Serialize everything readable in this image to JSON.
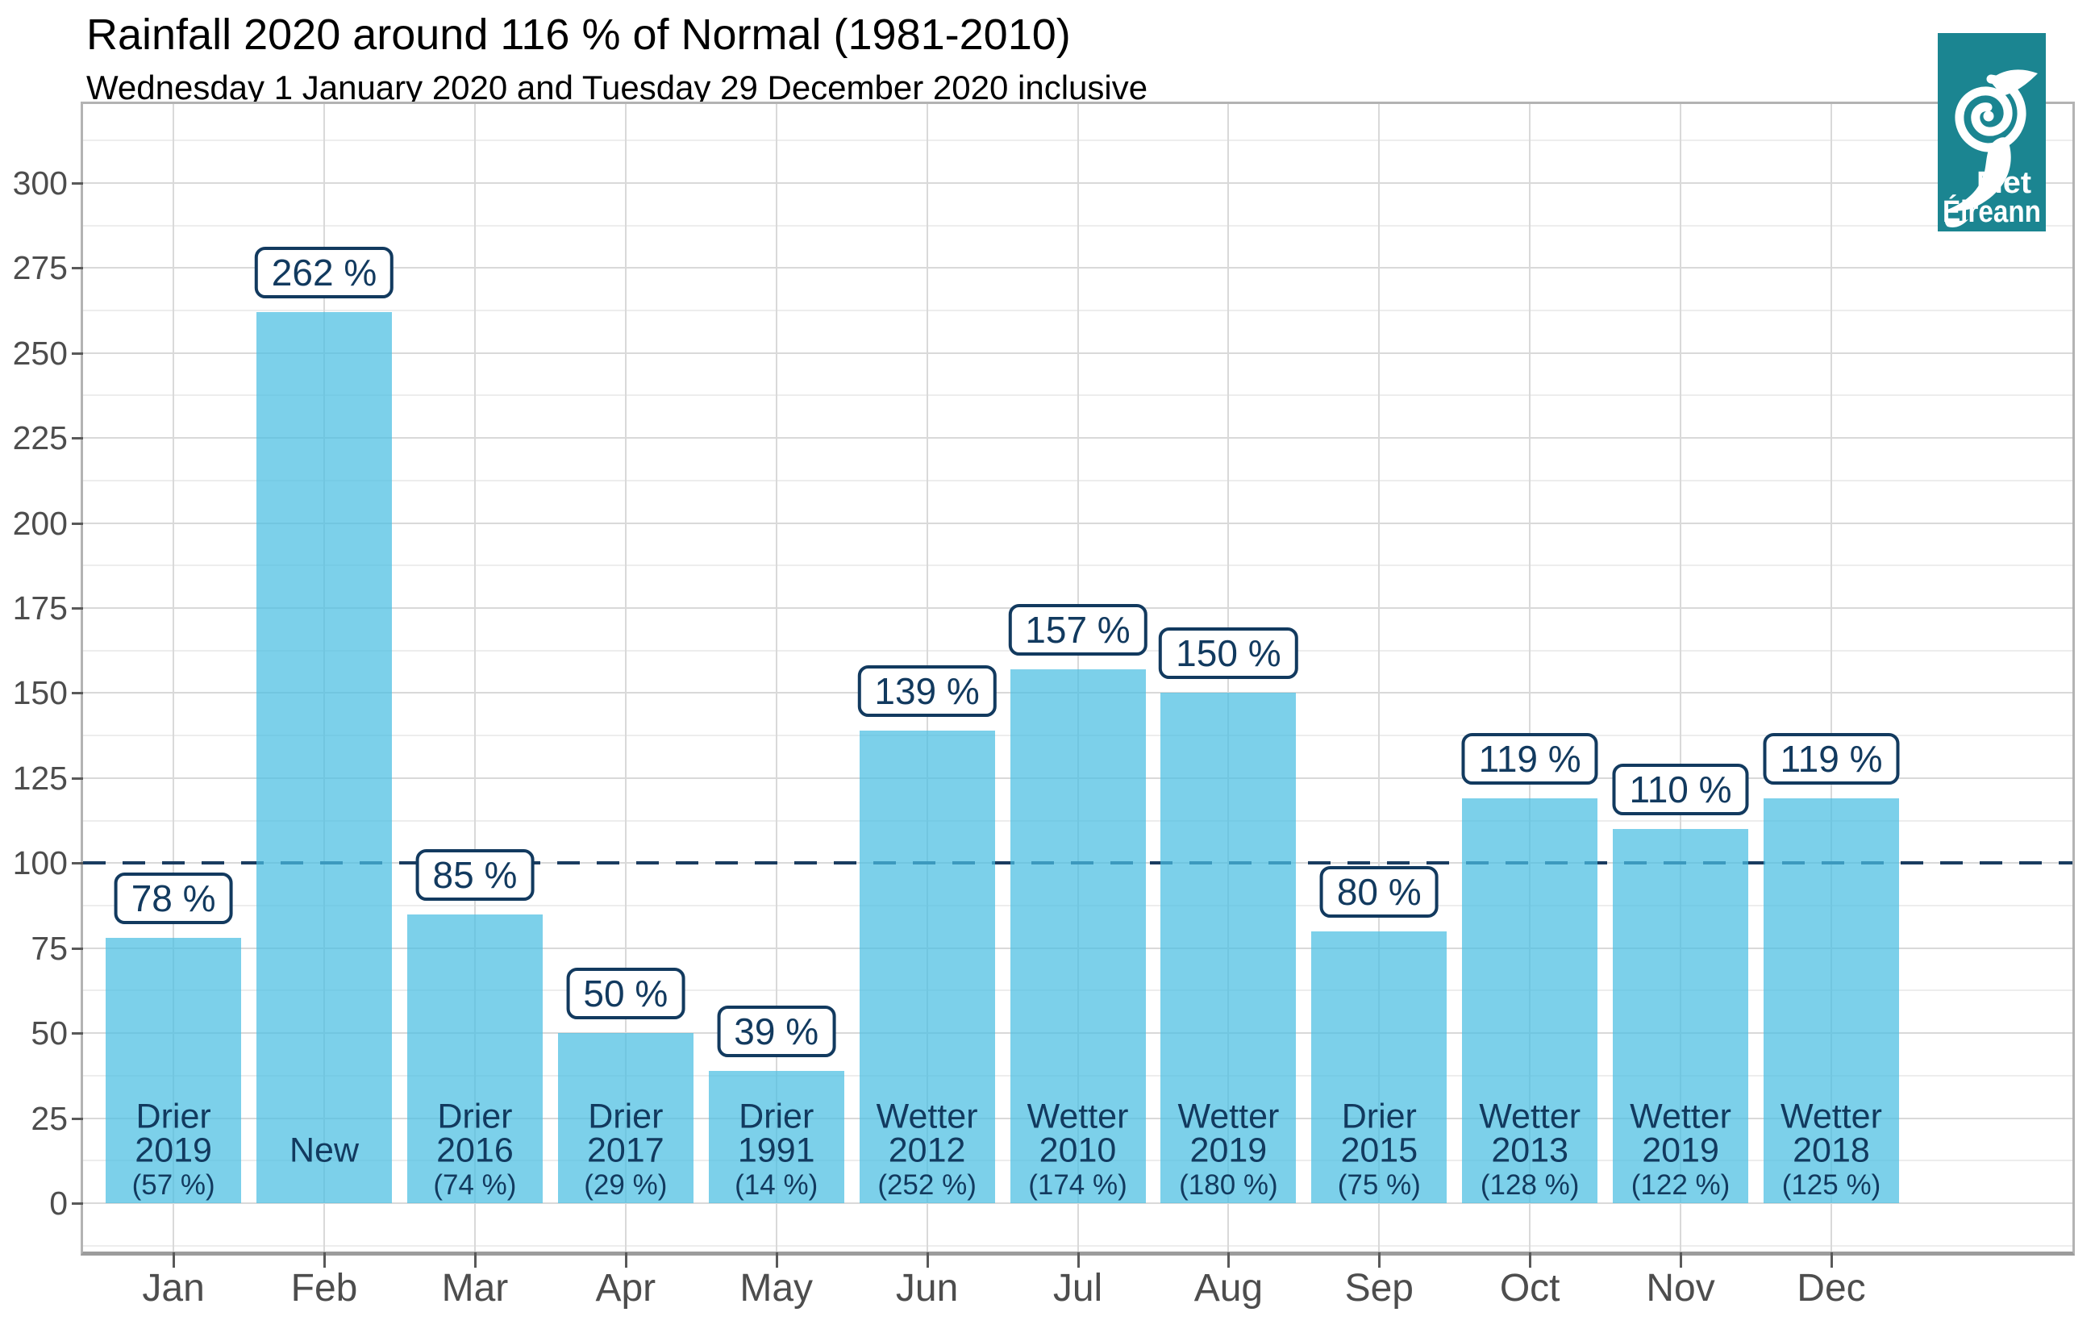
{
  "chart_data": {
    "type": "bar",
    "title": "Rainfall 2020 around 116 % of Normal (1981-2010)",
    "subtitle": "Wednesday 1 January 2020 and Tuesday 29 December 2020 inclusive",
    "categories": [
      "Jan",
      "Feb",
      "Mar",
      "Apr",
      "May",
      "Jun",
      "Jul",
      "Aug",
      "Sep",
      "Oct",
      "Nov",
      "Dec"
    ],
    "values": [
      78,
      262,
      85,
      50,
      39,
      139,
      157,
      150,
      80,
      119,
      110,
      119
    ],
    "value_labels": [
      "78 %",
      "262 %",
      "85 %",
      "50 %",
      "39 %",
      "139 %",
      "157 %",
      "150 %",
      "80 %",
      "119 %",
      "110 %",
      "119 %"
    ],
    "bar_annotations": [
      [
        "Drier",
        "2019",
        "(57 %)"
      ],
      [
        "",
        "New",
        ""
      ],
      [
        "Drier",
        "2016",
        "(74 %)"
      ],
      [
        "Drier",
        "2017",
        "(29 %)"
      ],
      [
        "Drier",
        "1991",
        "(14 %)"
      ],
      [
        "Wetter",
        "2012",
        "(252 %)"
      ],
      [
        "Wetter",
        "2010",
        "(174 %)"
      ],
      [
        "Wetter",
        "2019",
        "(180 %)"
      ],
      [
        "Drier",
        "2015",
        "(75 %)"
      ],
      [
        "Wetter",
        "2013",
        "(128 %)"
      ],
      [
        "Wetter",
        "2019",
        "(122 %)"
      ],
      [
        "Wetter",
        "2018",
        "(125 %)"
      ]
    ],
    "reference_line": 100,
    "y_ticks": [
      0,
      25,
      50,
      75,
      100,
      125,
      150,
      175,
      200,
      225,
      250,
      275,
      300
    ],
    "y_minor_step": 12.5,
    "ylim": [
      0,
      323
    ],
    "xlabel": "",
    "ylabel": "",
    "legend": "none",
    "grid": "horizontal major+minor, vertical major at month centers"
  },
  "colors": {
    "bar_fill": "rgba(73,190,226,0.72)",
    "navy": "#123a5f",
    "reference_line": "#1a3c60",
    "grid_major": "#d9d9d9",
    "grid_minor": "#ededed",
    "panel_border": "#b3b3b3",
    "axis_line": "#9c9c9c",
    "tick": "#595959",
    "axis_text": "#4d4d4d",
    "title_text": "#000000",
    "logo_teal": "#1b8591",
    "logo_white": "#ffffff"
  },
  "logo": {
    "line1": "Met",
    "line2": "Éireann",
    "symbol": "hurricane-swirl-icon"
  }
}
